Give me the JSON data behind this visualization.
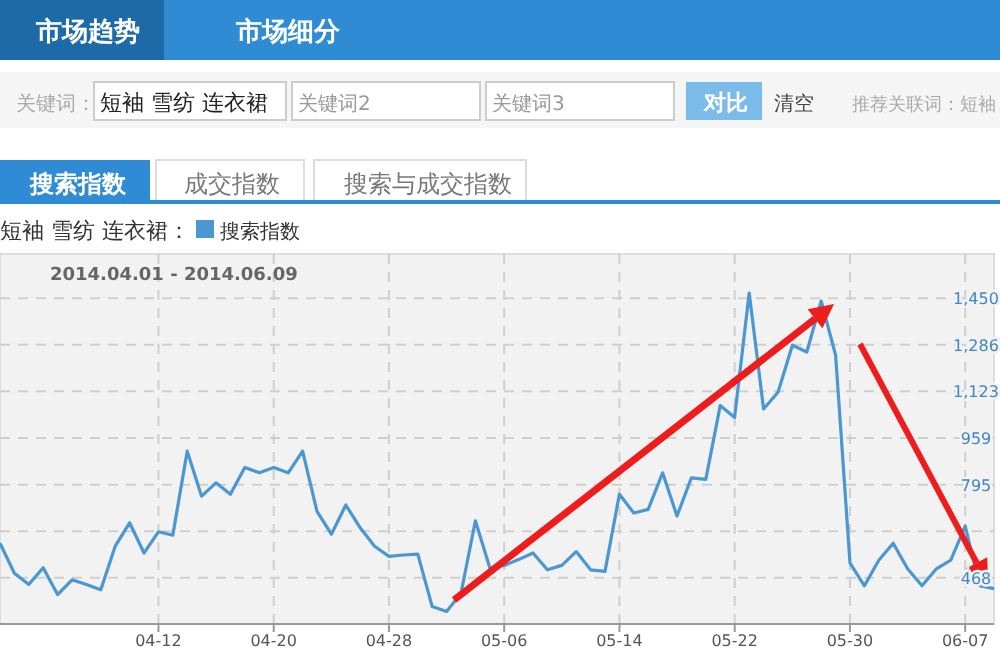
{
  "chart_data": {
    "type": "line",
    "subtitle": "2014.04.01 - 2014.06.09",
    "legend_title": "短袖 雪纺 连衣裙：",
    "legend": "top left",
    "grid": true,
    "marker": "none",
    "line_style": "solid",
    "annotations": [
      "市场趋势",
      "市场细分",
      "关键词：",
      "短袖 雪纺 连衣裙",
      "关键词2",
      "关键词3",
      "对比",
      "清空",
      "推荐关联词：短袖",
      "搜索指数",
      "成交指数",
      "搜索与成交指数"
    ],
    "xlim": [
      "2014-04-01",
      "2014-06-09"
    ],
    "xticks": [
      {
        "value": "2014-04-12",
        "label": "04-12"
      },
      {
        "value": "2014-04-20",
        "label": "04-20"
      },
      {
        "value": "2014-04-28",
        "label": "04-28"
      },
      {
        "value": "2014-05-06",
        "label": "05-06"
      },
      {
        "value": "2014-05-14",
        "label": "05-14"
      },
      {
        "value": "2014-05-22",
        "label": "05-22"
      },
      {
        "value": "2014-05-30",
        "label": "05-30"
      },
      {
        "value": "2014-06-07",
        "label": "06-07"
      }
    ],
    "ylim": [
      306,
      1605
    ],
    "yticks": [
      {
        "value": 468,
        "label": "468"
      },
      {
        "value": 632,
        "label": null
      },
      {
        "value": 795,
        "label": "795"
      },
      {
        "value": 959,
        "label": "959"
      },
      {
        "value": 1123,
        "label": "1,123"
      },
      {
        "value": 1286,
        "label": "1,286"
      },
      {
        "value": 1450,
        "label": "1,450"
      }
    ],
    "x": [
      "2014-04-01",
      "2014-04-02",
      "2014-04-03",
      "2014-04-04",
      "2014-04-05",
      "2014-04-06",
      "2014-04-07",
      "2014-04-08",
      "2014-04-09",
      "2014-04-10",
      "2014-04-11",
      "2014-04-12",
      "2014-04-13",
      "2014-04-14",
      "2014-04-15",
      "2014-04-16",
      "2014-04-17",
      "2014-04-18",
      "2014-04-19",
      "2014-04-20",
      "2014-04-21",
      "2014-04-22",
      "2014-04-23",
      "2014-04-24",
      "2014-04-25",
      "2014-04-26",
      "2014-04-27",
      "2014-04-28",
      "2014-04-29",
      "2014-04-30",
      "2014-05-01",
      "2014-05-02",
      "2014-05-03",
      "2014-05-04",
      "2014-05-05",
      "2014-05-06",
      "2014-05-07",
      "2014-05-08",
      "2014-05-09",
      "2014-05-10",
      "2014-05-11",
      "2014-05-12",
      "2014-05-13",
      "2014-05-14",
      "2014-05-15",
      "2014-05-16",
      "2014-05-17",
      "2014-05-18",
      "2014-05-19",
      "2014-05-20",
      "2014-05-21",
      "2014-05-22",
      "2014-05-23",
      "2014-05-24",
      "2014-05-25",
      "2014-05-26",
      "2014-05-27",
      "2014-05-28",
      "2014-05-29",
      "2014-05-30",
      "2014-05-31",
      "2014-06-01",
      "2014-06-02",
      "2014-06-03",
      "2014-06-04",
      "2014-06-05",
      "2014-06-06",
      "2014-06-07",
      "2014-06-08",
      "2014-06-09"
    ],
    "series": [
      {
        "name": "搜索指数",
        "color": "#4a97d2",
        "values": [
          590,
          484,
          445,
          503,
          409,
          461,
          445,
          426,
          579,
          661,
          555,
          630,
          618,
          913,
          755,
          802,
          762,
          856,
          837,
          856,
          837,
          913,
          701,
          621,
          724,
          644,
          579,
          543,
          548,
          551,
          367,
          350,
          414,
          668,
          503,
          512,
          532,
          555,
          496,
          512,
          560,
          496,
          491,
          762,
          696,
          708,
          837,
          685,
          819,
          814,
          1073,
          1031,
          1468,
          1061,
          1120,
          1285,
          1261,
          1440,
          1250,
          520,
          440,
          530,
          590,
          500,
          440,
          500,
          530,
          650,
          440,
          430
        ]
      }
    ]
  }
}
